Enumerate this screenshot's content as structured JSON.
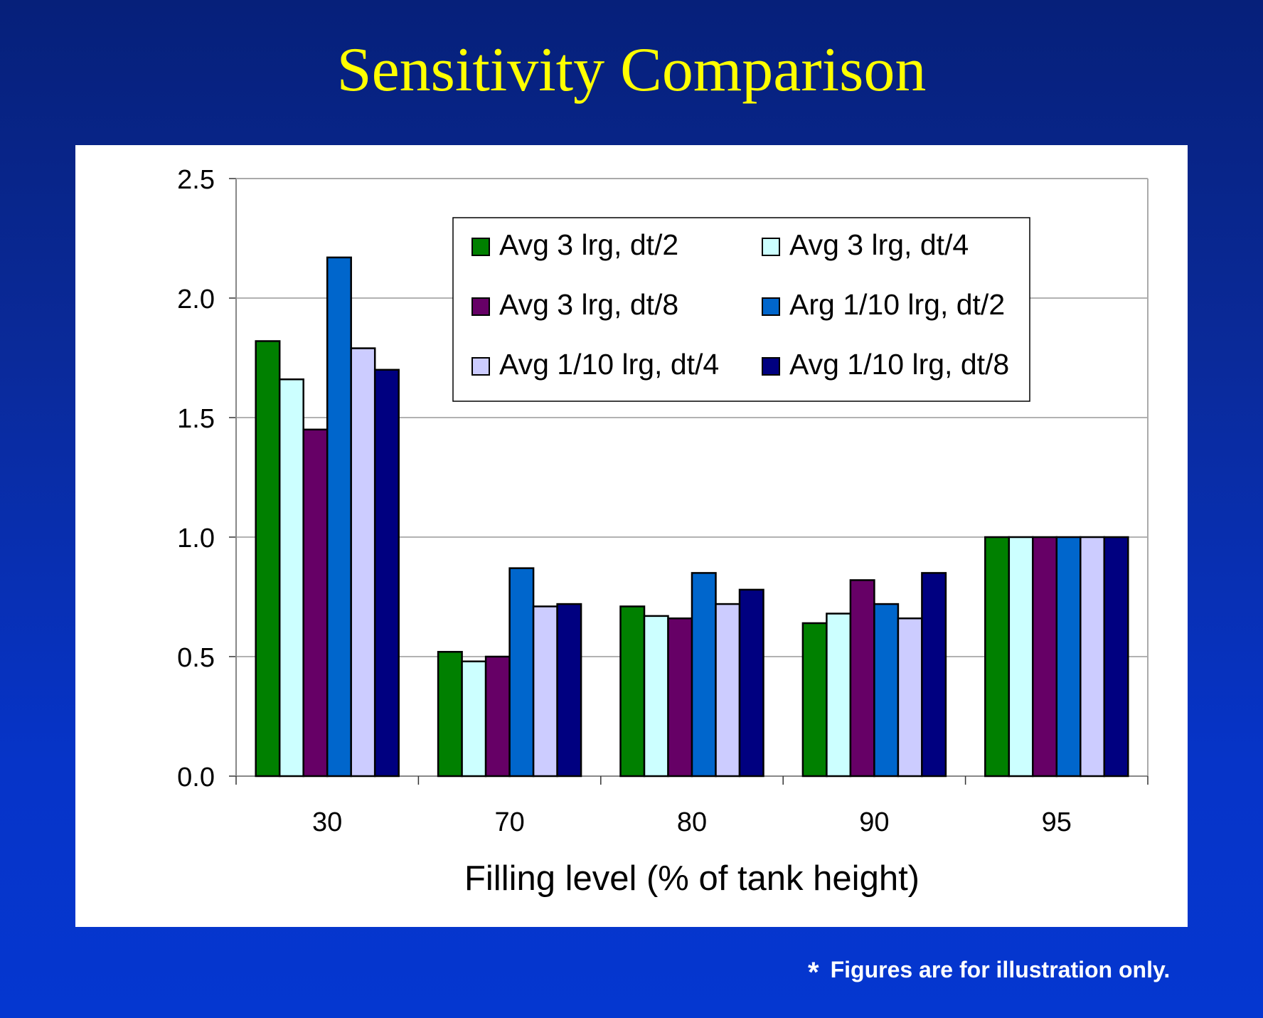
{
  "slide": {
    "title": "Sensitivity Comparison",
    "footnote_mark": "*",
    "footnote": "Figures are for illustration only."
  },
  "chart_data": {
    "type": "bar",
    "title": "Sensitivity Comparison",
    "xlabel": "Filling level (% of tank height)",
    "ylabel": "",
    "categories": [
      "30",
      "70",
      "80",
      "90",
      "95"
    ],
    "ylim": [
      0,
      2.5
    ],
    "yticks": [
      "0.0",
      "0.5",
      "1.0",
      "1.5",
      "2.0",
      "2.5"
    ],
    "grid": true,
    "legend_position": "top-right",
    "series": [
      {
        "name": "Avg 3 lrg, dt/2",
        "color": "#008000",
        "values": [
          1.82,
          0.52,
          0.71,
          0.64,
          1.0
        ]
      },
      {
        "name": "Avg 3 lrg, dt/4",
        "color": "#ccffff",
        "values": [
          1.66,
          0.48,
          0.67,
          0.68,
          1.0
        ]
      },
      {
        "name": "Avg 3 lrg, dt/8",
        "color": "#660066",
        "values": [
          1.45,
          0.5,
          0.66,
          0.82,
          1.0
        ]
      },
      {
        "name": "Arg 1/10 lrg, dt/2",
        "color": "#0066cc",
        "values": [
          2.17,
          0.87,
          0.85,
          0.72,
          1.0
        ]
      },
      {
        "name": "Avg 1/10 lrg, dt/4",
        "color": "#ccccff",
        "values": [
          1.79,
          0.71,
          0.72,
          0.66,
          1.0
        ]
      },
      {
        "name": "Avg 1/10 lrg, dt/8",
        "color": "#000080",
        "values": [
          1.7,
          0.72,
          0.78,
          0.85,
          1.0
        ]
      }
    ]
  }
}
